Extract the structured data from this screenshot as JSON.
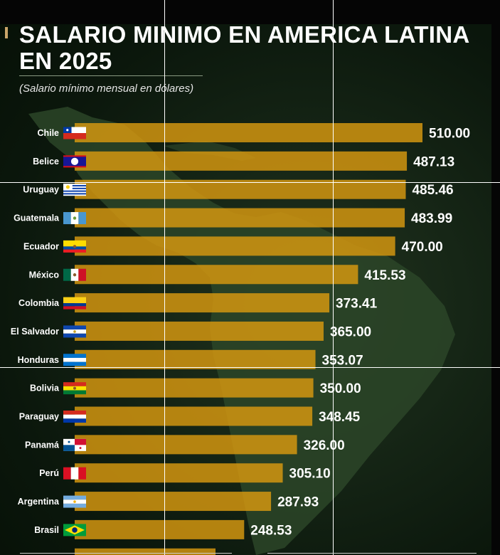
{
  "header": {
    "title": "SALARIO MINIMO EN AMERICA LATINA EN 2025",
    "subtitle": "(Salario mínimo mensual en dólares)"
  },
  "colors": {
    "bar": "#d99a10",
    "background": "#0f1f10",
    "value_text": "#ffffff",
    "label_text": "#ffffff"
  },
  "chart_data": {
    "type": "bar",
    "orientation": "horizontal",
    "categories": [
      "Chile",
      "Belice",
      "Uruguay",
      "Guatemala",
      "Ecuador",
      "México",
      "Colombia",
      "El Salvador",
      "Honduras",
      "Bolivia",
      "Paraguay",
      "Panamá",
      "Perú",
      "Argentina",
      "Brasil"
    ],
    "values": [
      510.0,
      487.13,
      485.46,
      483.99,
      470.0,
      415.53,
      373.41,
      365.0,
      353.07,
      350.0,
      348.45,
      326.0,
      305.1,
      287.93,
      248.53
    ],
    "value_labels": [
      "510.00",
      "487.13",
      "485.46",
      "483.99",
      "470.00",
      "415.53",
      "373.41",
      "365.00",
      "353.07",
      "350.00",
      "348.45",
      "326.00",
      "305.10",
      "287.93",
      "248.53"
    ],
    "flag_icons": [
      "chile-flag-icon",
      "belize-flag-icon",
      "uruguay-flag-icon",
      "guatemala-flag-icon",
      "ecuador-flag-icon",
      "mexico-flag-icon",
      "colombia-flag-icon",
      "el-salvador-flag-icon",
      "honduras-flag-icon",
      "bolivia-flag-icon",
      "paraguay-flag-icon",
      "panama-flag-icon",
      "peru-flag-icon",
      "argentina-flag-icon",
      "brazil-flag-icon"
    ],
    "xlim": [
      0,
      510
    ],
    "grid": false,
    "title": "SALARIO MINIMO EN AMERICA LATINA EN 2025",
    "xlabel": "",
    "ylabel": ""
  }
}
